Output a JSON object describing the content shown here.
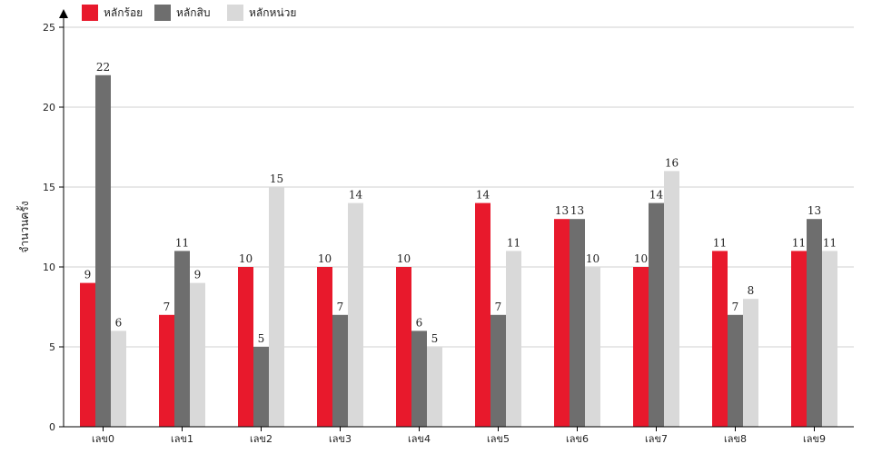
{
  "chart_data": {
    "type": "bar",
    "categories": [
      "เลข0",
      "เลข1",
      "เลข2",
      "เลข3",
      "เลข4",
      "เลข5",
      "เลข6",
      "เลข7",
      "เลข8",
      "เลข9"
    ],
    "series": [
      {
        "name": "หลักร้อย",
        "color": "#e8192c",
        "values": [
          9,
          7,
          10,
          10,
          10,
          14,
          13,
          10,
          11,
          11
        ]
      },
      {
        "name": "หลักสิบ",
        "color": "#6e6e6e",
        "values": [
          22,
          11,
          5,
          7,
          6,
          7,
          13,
          14,
          7,
          13
        ]
      },
      {
        "name": "หลักหน่วย",
        "color": "#d9d9d9",
        "values": [
          6,
          9,
          15,
          14,
          5,
          11,
          10,
          16,
          8,
          11
        ]
      }
    ],
    "ylabel": "จำนวนครั้ง",
    "ylim": [
      0,
      25
    ],
    "yticks": [
      0,
      5,
      10,
      15,
      20,
      25
    ],
    "grid": true,
    "legend_position": "top-left",
    "data_labels": true
  }
}
